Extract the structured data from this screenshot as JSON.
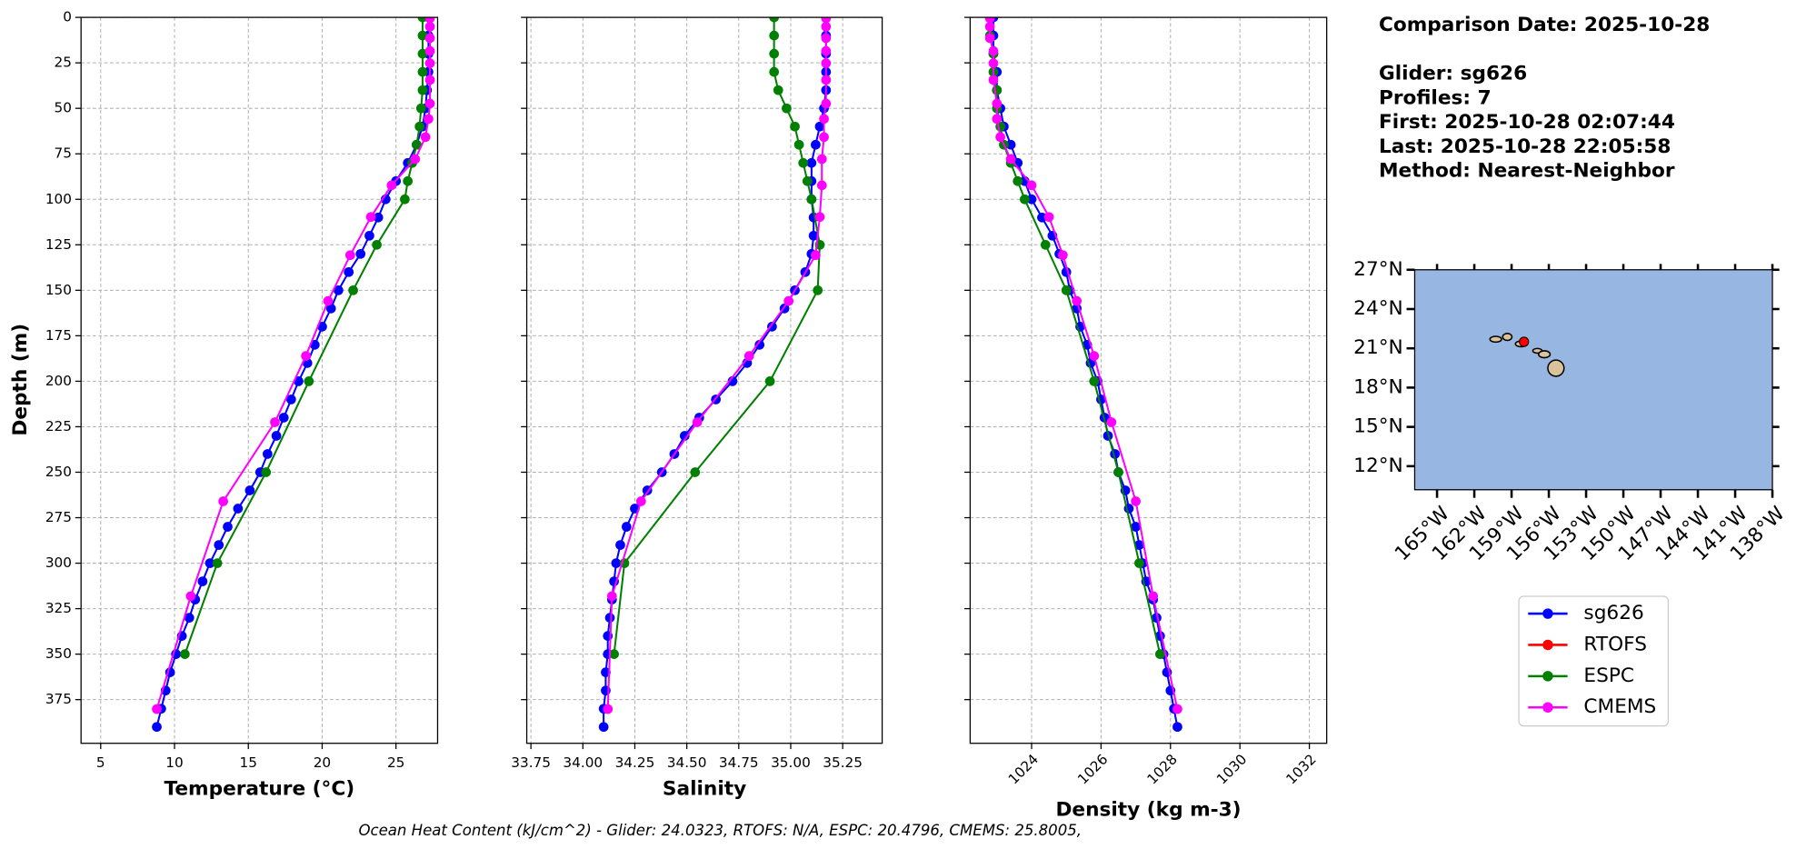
{
  "chart_data": [
    {
      "type": "line",
      "xlabel": "Temperature (°C)",
      "ylabel": "Depth (m)",
      "xlim": [
        3.67,
        27.82
      ],
      "ylim": [
        0,
        399
      ],
      "y_inverted": true,
      "grid": true,
      "xticks": [
        5,
        10,
        15,
        20,
        25
      ],
      "yticks": [
        0,
        25,
        50,
        75,
        100,
        125,
        150,
        175,
        200,
        225,
        250,
        275,
        300,
        325,
        350,
        375
      ],
      "series": [
        {
          "name": "sg626",
          "color": "#0000ff",
          "depths": [
            0,
            10,
            20,
            30,
            40,
            50,
            60,
            70,
            80,
            90,
            100,
            110,
            120,
            130,
            140,
            150,
            160,
            170,
            180,
            190,
            200,
            210,
            220,
            230,
            240,
            250,
            260,
            270,
            280,
            290,
            300,
            310,
            320,
            330,
            340,
            350,
            360,
            370,
            380,
            390
          ],
          "values": [
            27.2,
            27.2,
            27.2,
            27.2,
            27.1,
            27.0,
            26.8,
            26.4,
            25.8,
            25.0,
            24.3,
            23.8,
            23.2,
            22.6,
            21.8,
            21.1,
            20.6,
            20.0,
            19.5,
            19.0,
            18.4,
            17.9,
            17.4,
            16.9,
            16.3,
            15.8,
            15.1,
            14.3,
            13.6,
            13.0,
            12.4,
            11.9,
            11.4,
            11.0,
            10.5,
            10.1,
            9.7,
            9.4,
            9.1,
            8.8
          ]
        },
        {
          "name": "RTOFS",
          "color": "#ff0000",
          "depths": [],
          "values": []
        },
        {
          "name": "ESPC",
          "color": "#008000",
          "depths": [
            0,
            10,
            20,
            30,
            40,
            50,
            60,
            70,
            80,
            90,
            100,
            125,
            150,
            200,
            250,
            300,
            350
          ],
          "values": [
            26.8,
            26.8,
            26.8,
            26.8,
            26.8,
            26.7,
            26.6,
            26.4,
            26.1,
            25.8,
            25.6,
            23.7,
            22.1,
            19.1,
            16.2,
            12.9,
            10.7
          ]
        },
        {
          "name": "CMEMS",
          "color": "#ff00ff",
          "depths": [
            0.5,
            5.1,
            11.4,
            18.5,
            25.2,
            34.4,
            47.4,
            55.8,
            65.8,
            77.9,
            92.3,
            109.7,
            130.7,
            155.9,
            186.1,
            222.5,
            266.0,
            318.1,
            380.2
          ],
          "values": [
            27.3,
            27.3,
            27.3,
            27.3,
            27.3,
            27.3,
            27.3,
            27.2,
            27.0,
            26.3,
            24.7,
            23.3,
            21.9,
            20.4,
            18.9,
            16.8,
            13.3,
            11.1,
            8.8
          ]
        }
      ]
    },
    {
      "type": "line",
      "xlabel": "Salinity",
      "xlim": [
        33.73,
        35.44
      ],
      "ylim": [
        0,
        399
      ],
      "y_inverted": true,
      "grid": true,
      "xticks": [
        33.75,
        {
          "value": 34,
          "label": "34.00"
        },
        34.25,
        {
          "value": 34.5,
          "label": "34.50"
        },
        34.75,
        {
          "value": 35,
          "label": "35.00"
        },
        35.25
      ],
      "yticks": [
        0,
        25,
        50,
        75,
        100,
        125,
        150,
        175,
        200,
        225,
        250,
        275,
        300,
        325,
        350,
        375
      ],
      "series": [
        {
          "name": "sg626",
          "color": "#0000ff",
          "depths": [
            0,
            10,
            20,
            30,
            40,
            50,
            60,
            70,
            80,
            90,
            100,
            110,
            120,
            130,
            140,
            150,
            160,
            170,
            180,
            190,
            200,
            210,
            220,
            230,
            240,
            250,
            260,
            270,
            280,
            290,
            300,
            310,
            320,
            330,
            340,
            350,
            360,
            370,
            380,
            390
          ],
          "values": [
            35.17,
            35.17,
            35.17,
            35.17,
            35.17,
            35.16,
            35.14,
            35.12,
            35.1,
            35.1,
            35.1,
            35.11,
            35.11,
            35.1,
            35.07,
            35.02,
            34.97,
            34.91,
            34.85,
            34.79,
            34.72,
            34.64,
            34.56,
            34.49,
            34.44,
            34.38,
            34.31,
            34.25,
            34.21,
            34.18,
            34.16,
            34.15,
            34.14,
            34.13,
            34.12,
            34.12,
            34.11,
            34.11,
            34.1,
            34.1
          ]
        },
        {
          "name": "RTOFS",
          "color": "#ff0000",
          "depths": [],
          "values": []
        },
        {
          "name": "ESPC",
          "color": "#008000",
          "depths": [
            0,
            10,
            20,
            30,
            40,
            50,
            60,
            70,
            80,
            90,
            100,
            125,
            150,
            200,
            250,
            300,
            350
          ],
          "values": [
            34.92,
            34.92,
            34.92,
            34.92,
            34.94,
            34.98,
            35.02,
            35.04,
            35.06,
            35.08,
            35.1,
            35.14,
            35.13,
            34.9,
            34.54,
            34.2,
            34.15
          ]
        },
        {
          "name": "CMEMS",
          "color": "#ff00ff",
          "depths": [
            0.5,
            5.1,
            11.4,
            18.5,
            25.2,
            34.4,
            47.4,
            55.8,
            65.8,
            77.9,
            92.3,
            109.7,
            130.7,
            155.9,
            186.1,
            222.5,
            266.0,
            318.1,
            380.2
          ],
          "values": [
            35.17,
            35.17,
            35.17,
            35.17,
            35.17,
            35.17,
            35.17,
            35.16,
            35.16,
            35.15,
            35.15,
            35.14,
            35.12,
            34.99,
            34.8,
            34.55,
            34.28,
            34.14,
            34.12
          ]
        }
      ]
    },
    {
      "type": "line",
      "xlabel": "Density (kg m-3)",
      "xlim": [
        1022.23,
        1032.5
      ],
      "ylim": [
        0,
        399
      ],
      "y_inverted": true,
      "grid": true,
      "xtick_rotation": 45,
      "xticks": [
        1024,
        1026,
        1028,
        1030,
        1032
      ],
      "yticks": [
        0,
        25,
        50,
        75,
        100,
        125,
        150,
        175,
        200,
        225,
        250,
        275,
        300,
        325,
        350,
        375
      ],
      "series": [
        {
          "name": "sg626",
          "color": "#0000ff",
          "depths": [
            0,
            10,
            20,
            30,
            40,
            50,
            60,
            70,
            80,
            90,
            100,
            110,
            120,
            130,
            140,
            150,
            160,
            170,
            180,
            190,
            200,
            210,
            220,
            230,
            240,
            250,
            260,
            270,
            280,
            290,
            300,
            310,
            320,
            330,
            340,
            350,
            360,
            370,
            380,
            390
          ],
          "values": [
            1022.9,
            1022.9,
            1022.9,
            1023.0,
            1023.0,
            1023.1,
            1023.2,
            1023.4,
            1023.6,
            1023.8,
            1024.0,
            1024.3,
            1024.6,
            1024.8,
            1025.0,
            1025.1,
            1025.3,
            1025.4,
            1025.6,
            1025.7,
            1025.9,
            1026.0,
            1026.1,
            1026.2,
            1026.4,
            1026.5,
            1026.7,
            1026.8,
            1027.0,
            1027.1,
            1027.2,
            1027.3,
            1027.5,
            1027.6,
            1027.7,
            1027.8,
            1027.9,
            1028.0,
            1028.1,
            1028.2
          ]
        },
        {
          "name": "RTOFS",
          "color": "#ff0000",
          "depths": [],
          "values": []
        },
        {
          "name": "ESPC",
          "color": "#008000",
          "depths": [
            0,
            10,
            20,
            30,
            40,
            50,
            60,
            70,
            80,
            90,
            100,
            125,
            150,
            200,
            250,
            300,
            350
          ],
          "values": [
            1022.8,
            1022.8,
            1022.9,
            1022.9,
            1023.0,
            1023.0,
            1023.1,
            1023.2,
            1023.4,
            1023.6,
            1023.8,
            1024.4,
            1025.0,
            1025.8,
            1026.5,
            1027.1,
            1027.7
          ]
        },
        {
          "name": "CMEMS",
          "color": "#ff00ff",
          "depths": [
            0.5,
            5.1,
            11.4,
            18.5,
            25.2,
            34.4,
            47.4,
            55.8,
            65.8,
            77.9,
            92.3,
            109.7,
            130.7,
            155.9,
            186.1,
            222.5,
            266.0,
            318.1,
            380.2
          ],
          "values": [
            1022.8,
            1022.8,
            1022.8,
            1022.9,
            1022.9,
            1022.9,
            1023.0,
            1023.0,
            1023.1,
            1023.4,
            1024.0,
            1024.5,
            1024.9,
            1025.3,
            1025.8,
            1026.3,
            1027.0,
            1027.5,
            1028.2
          ]
        }
      ]
    },
    {
      "type": "map",
      "xlim": [
        -166.8,
        -138
      ],
      "ylim": [
        10.2,
        27
      ],
      "xtick_rotation": 45,
      "xticks": [
        {
          "value": -165,
          "label": "165°W"
        },
        {
          "value": -162,
          "label": "162°W"
        },
        {
          "value": -159,
          "label": "159°W"
        },
        {
          "value": -156,
          "label": "156°W"
        },
        {
          "value": -153,
          "label": "153°W"
        },
        {
          "value": -150,
          "label": "150°W"
        },
        {
          "value": -147,
          "label": "147°W"
        },
        {
          "value": -144,
          "label": "144°W"
        },
        {
          "value": -141,
          "label": "141°W"
        },
        {
          "value": -138,
          "label": "138°W"
        }
      ],
      "yticks": [
        {
          "value": 27,
          "label": "27°N"
        },
        {
          "value": 24,
          "label": "24°N"
        },
        {
          "value": 21,
          "label": "21°N"
        },
        {
          "value": 18,
          "label": "18°N"
        },
        {
          "value": 15,
          "label": "15°N"
        },
        {
          "value": 12,
          "label": "12°N"
        }
      ],
      "location": {
        "lon": -158.0,
        "lat": 21.5,
        "color": "#ff0000"
      }
    }
  ],
  "info": [
    "Comparison Date: 2025-10-28",
    "Glider: sg626",
    "Profiles: 7",
    "First: 2025-10-28 02:07:44",
    "Last: 2025-10-28 22:05:58",
    "Method: Nearest-Neighbor"
  ],
  "footer": "Ocean Heat Content (kJ/cm^2) - Glider: 24.0323,  RTOFS: N/A,  ESPC: 20.4796,  CMEMS: 25.8005,"
}
